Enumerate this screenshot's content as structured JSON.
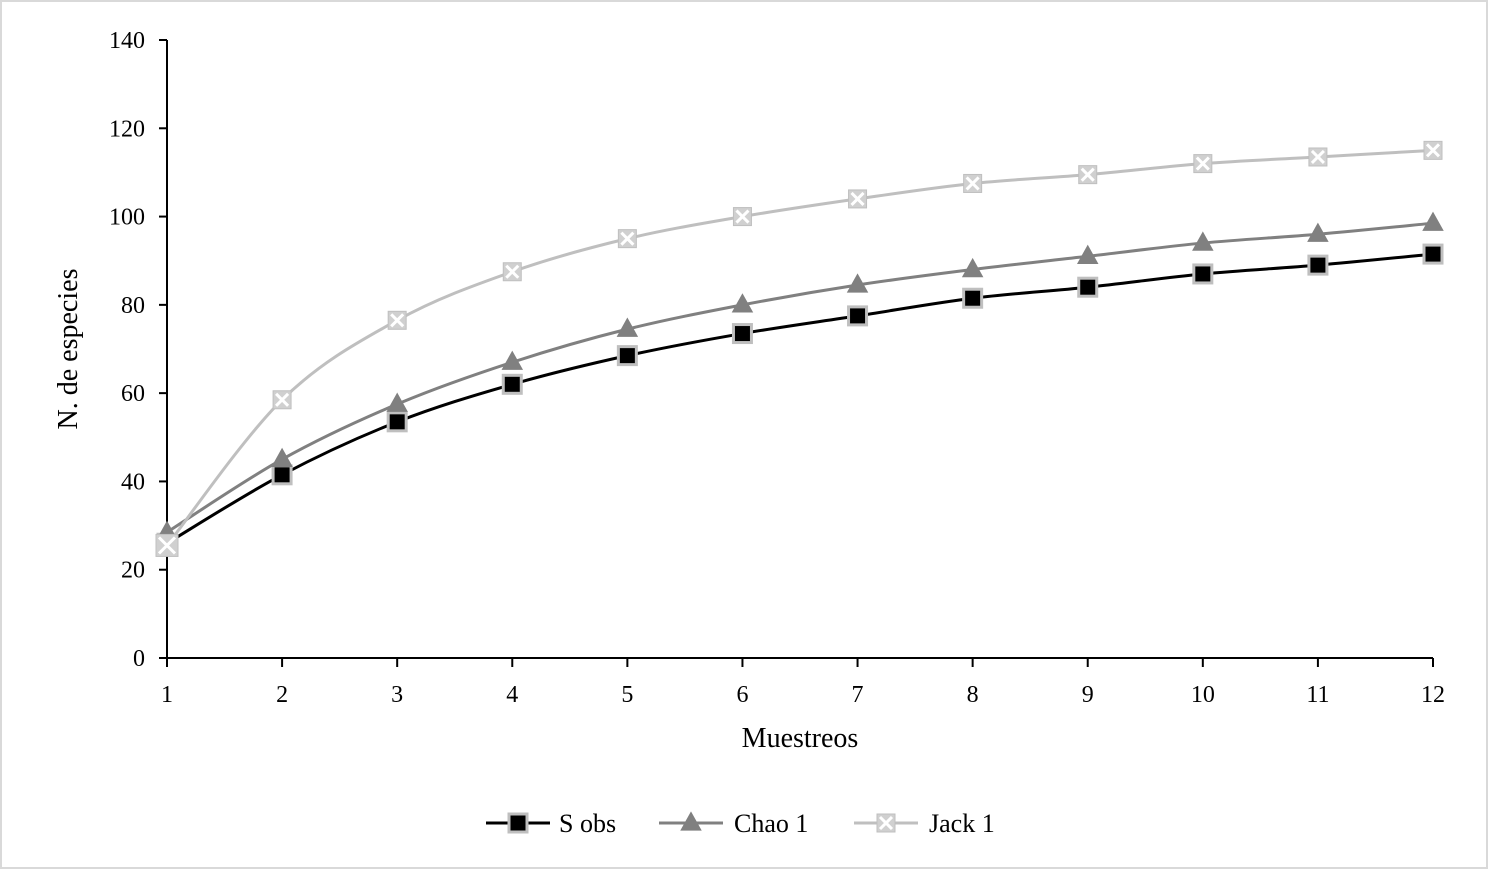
{
  "chart_data": {
    "type": "line",
    "title": "",
    "xlabel": "Muestreos",
    "ylabel": "N. de especies",
    "x": [
      1,
      2,
      3,
      4,
      5,
      6,
      7,
      8,
      9,
      10,
      11,
      12
    ],
    "xlim": [
      1,
      12
    ],
    "ylim": [
      0,
      140
    ],
    "yticks": [
      0,
      20,
      40,
      60,
      80,
      100,
      120,
      140
    ],
    "grid": false,
    "legend_position": "bottom",
    "series": [
      {
        "name": "S obs",
        "marker": "square",
        "line_color": "#000000",
        "marker_fill": "#000000",
        "marker_stroke": "#bfbfbf",
        "values": [
          26,
          41.5,
          53.5,
          62,
          68.5,
          73.5,
          77.5,
          81.5,
          84,
          87,
          89,
          91.5
        ]
      },
      {
        "name": "Chao 1",
        "marker": "triangle",
        "line_color": "#808080",
        "marker_fill": "#808080",
        "marker_stroke": "#808080",
        "values": [
          28.5,
          45,
          57.5,
          67,
          74.5,
          80,
          84.5,
          88,
          91,
          94,
          96,
          98.5
        ]
      },
      {
        "name": "Jack 1",
        "marker": "x-square",
        "line_color": "#bfbfbf",
        "marker_fill": "#d0d0d0",
        "marker_stroke": "#ffffff",
        "values": [
          25.5,
          58.5,
          76.5,
          87.5,
          95,
          100,
          104,
          107.5,
          109.5,
          112,
          113.5,
          115
        ]
      }
    ]
  }
}
